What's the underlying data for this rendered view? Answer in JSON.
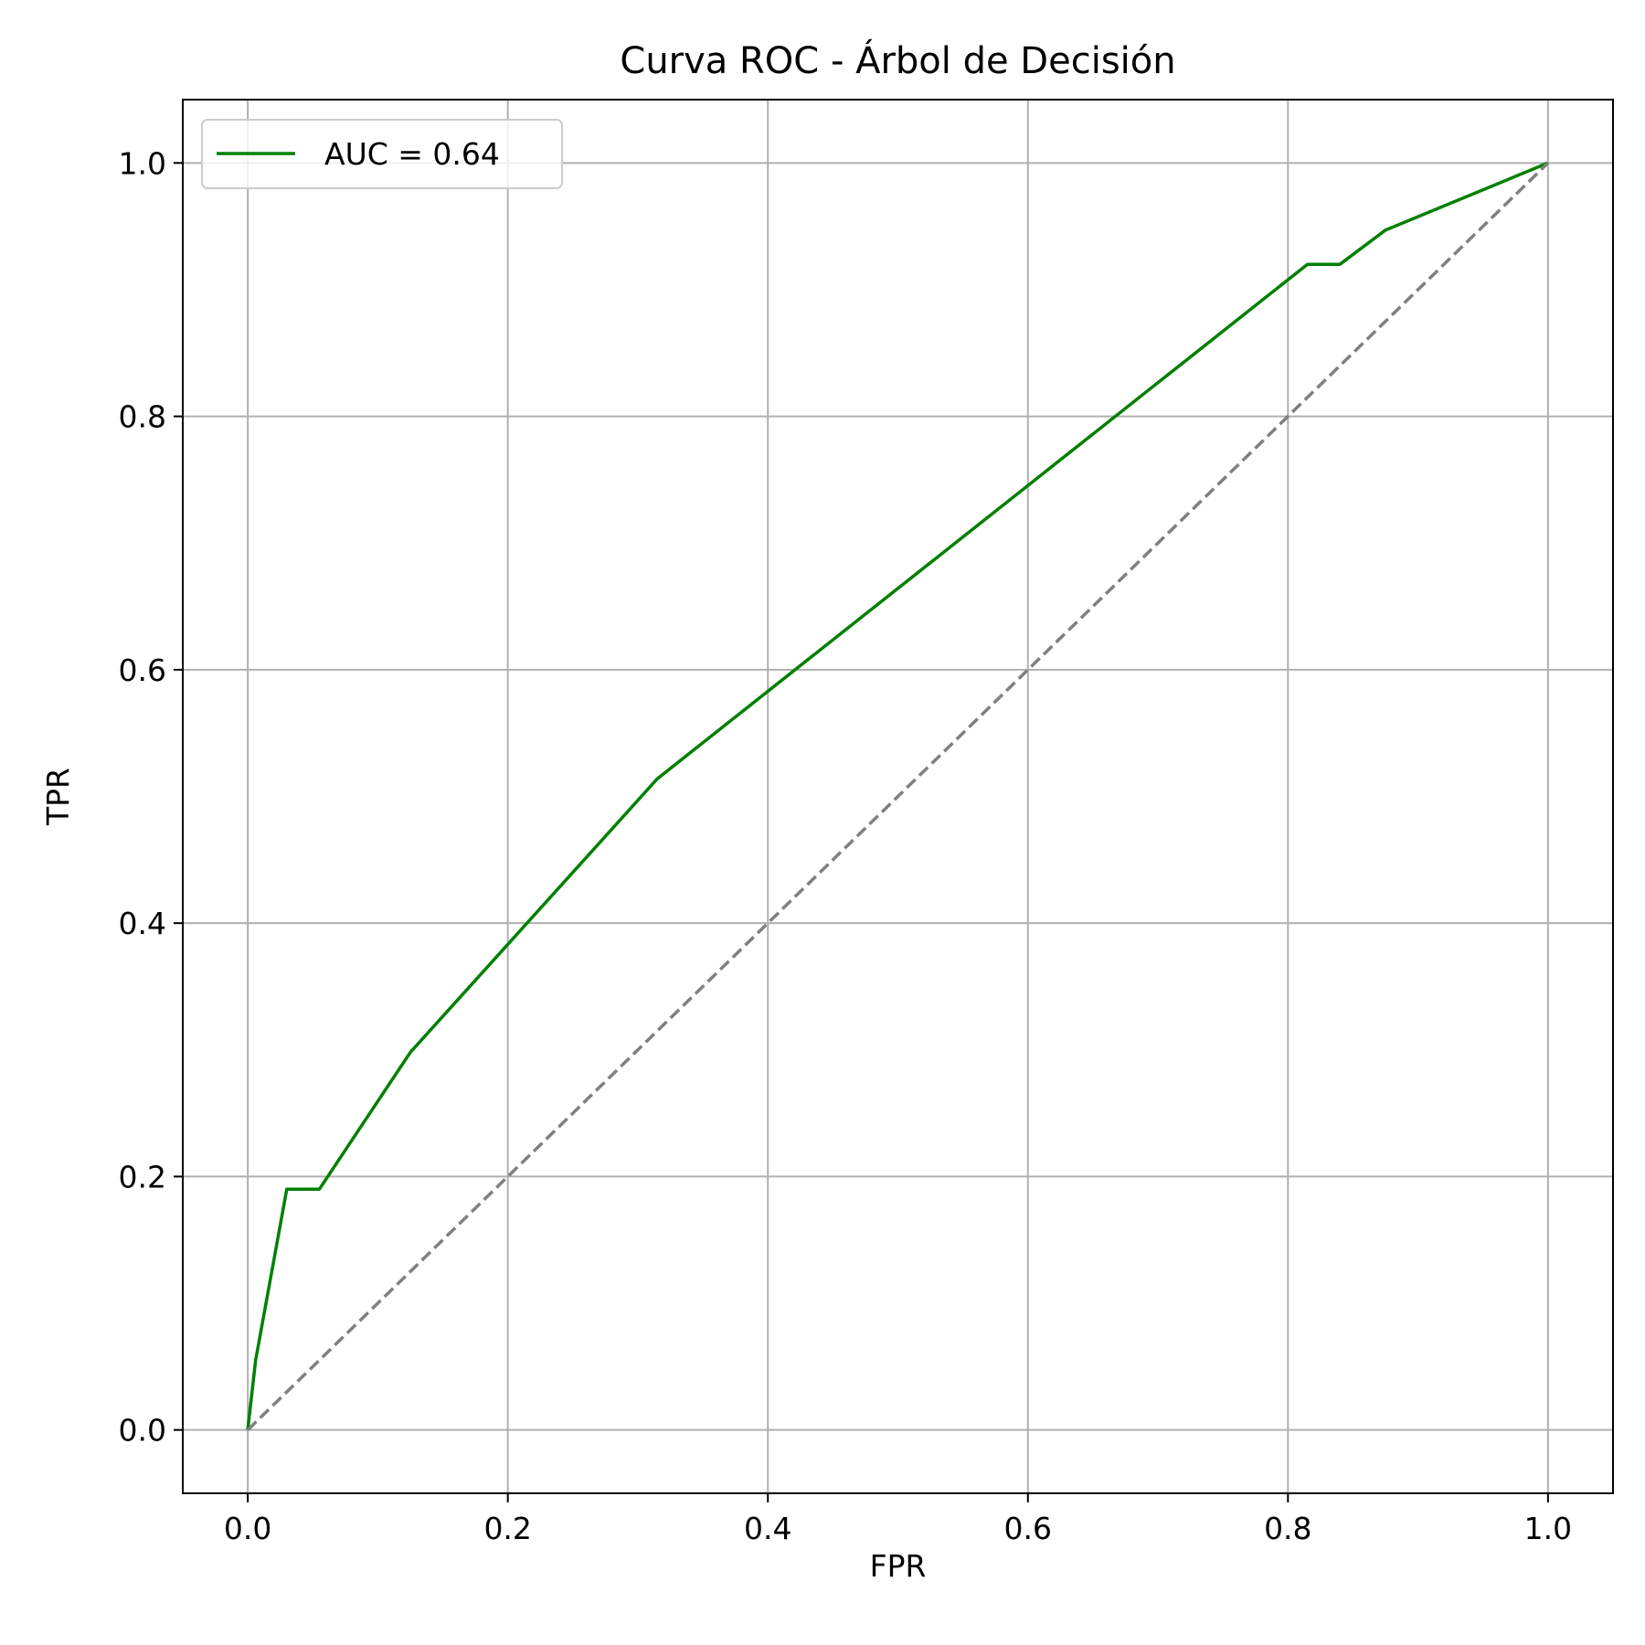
{
  "chart_data": {
    "type": "line",
    "title": "Curva ROC - Árbol de Decisión",
    "xlabel": "FPR",
    "ylabel": "TPR",
    "xlim": [
      -0.05,
      1.05
    ],
    "ylim": [
      -0.05,
      1.05
    ],
    "x_ticks": [
      0.0,
      0.2,
      0.4,
      0.6,
      0.8,
      1.0
    ],
    "y_ticks": [
      0.0,
      0.2,
      0.4,
      0.6,
      0.8,
      1.0
    ],
    "x_tick_labels": [
      "0.0",
      "0.2",
      "0.4",
      "0.6",
      "0.8",
      "1.0"
    ],
    "y_tick_labels": [
      "0.0",
      "0.2",
      "0.4",
      "0.6",
      "0.8",
      "1.0"
    ],
    "grid": true,
    "legend_position": "upper-left",
    "series": [
      {
        "name": "AUC = 0.64",
        "color": "#008000",
        "style": "solid",
        "x": [
          0.0,
          0.006,
          0.03,
          0.055,
          0.125,
          0.315,
          0.815,
          0.84,
          0.875,
          1.0
        ],
        "y": [
          0.0,
          0.055,
          0.19,
          0.19,
          0.298,
          0.514,
          0.92,
          0.92,
          0.947,
          1.0
        ]
      },
      {
        "color": "#808080",
        "style": "dashed",
        "x": [
          0.0,
          1.0
        ],
        "y": [
          0.0,
          1.0
        ]
      }
    ]
  }
}
